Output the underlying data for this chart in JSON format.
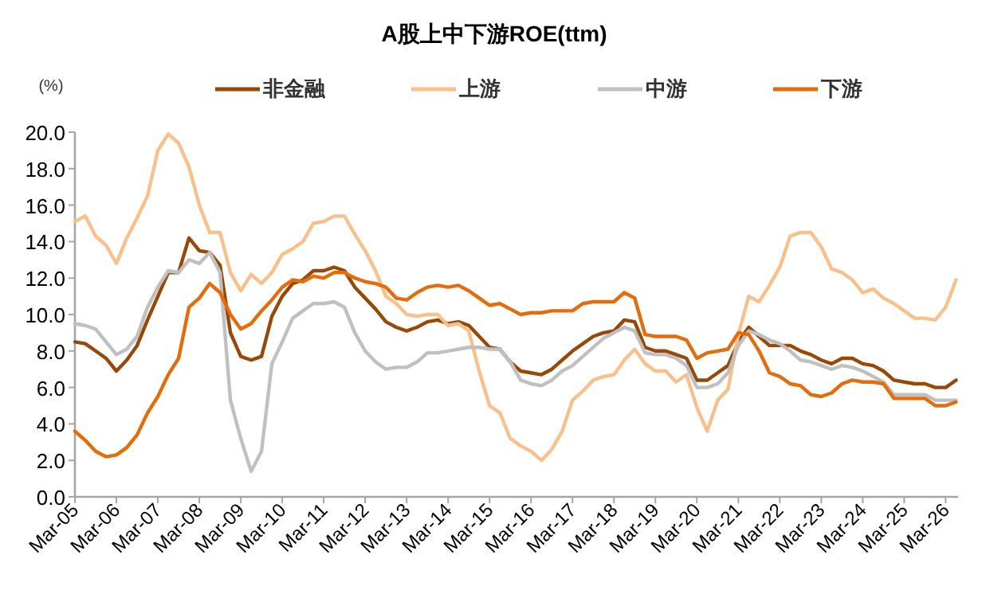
{
  "chart_data": {
    "type": "line",
    "title": "A股上中下游ROE(ttm)",
    "ylabel": "(%)",
    "categories": [
      "Mar-05",
      null,
      null,
      null,
      "Mar-06",
      null,
      null,
      null,
      "Mar-07",
      null,
      null,
      null,
      "Mar-08",
      null,
      null,
      null,
      "Mar-09",
      null,
      null,
      null,
      "Mar-10",
      null,
      null,
      null,
      "Mar-11",
      null,
      null,
      null,
      "Mar-12",
      null,
      null,
      null,
      "Mar-13",
      null,
      null,
      null,
      "Mar-14",
      null,
      null,
      null,
      "Mar-15",
      null,
      null,
      null,
      "Mar-16",
      null,
      null,
      null,
      "Mar-17",
      null,
      null,
      null,
      "Mar-18",
      null,
      null,
      null,
      "Mar-19",
      null,
      null,
      null,
      "Mar-20",
      null,
      null,
      null,
      "Mar-21",
      null,
      null,
      null,
      "Mar-22",
      null,
      null,
      null,
      "Mar-23",
      null,
      null,
      null,
      "Mar-24",
      null,
      null,
      null,
      "Mar-25",
      null,
      null,
      null,
      "Mar-26",
      null
    ],
    "series": [
      {
        "name": "非金融",
        "color": "#984807",
        "values": [
          8.5,
          8.4,
          8.0,
          7.6,
          6.9,
          7.5,
          8.3,
          9.7,
          11.0,
          12.3,
          12.3,
          14.2,
          13.5,
          13.4,
          12.7,
          9.0,
          7.7,
          7.5,
          7.7,
          9.9,
          11.0,
          11.7,
          11.9,
          12.4,
          12.4,
          12.6,
          12.4,
          11.5,
          10.9,
          10.3,
          9.6,
          9.3,
          9.1,
          9.3,
          9.6,
          9.7,
          9.5,
          9.6,
          9.4,
          8.8,
          8.2,
          8.1,
          7.4,
          6.9,
          6.8,
          6.7,
          7.0,
          7.5,
          8.0,
          8.4,
          8.8,
          9.0,
          9.1,
          9.7,
          9.6,
          8.2,
          8.0,
          8.0,
          7.8,
          7.6,
          6.4,
          6.4,
          6.8,
          7.2,
          8.5,
          9.3,
          8.8,
          8.3,
          8.3,
          8.3,
          8.0,
          7.8,
          7.5,
          7.3,
          7.6,
          7.6,
          7.3,
          7.2,
          6.9,
          6.4,
          6.3,
          6.2,
          6.2,
          6.0,
          6.0,
          6.4
        ]
      },
      {
        "name": "上游",
        "color": "#f9c08c",
        "values": [
          15.1,
          15.4,
          14.3,
          13.8,
          12.8,
          14.2,
          15.3,
          16.5,
          19.0,
          19.9,
          19.4,
          18.1,
          16.0,
          14.5,
          14.5,
          12.3,
          11.3,
          12.2,
          11.7,
          12.3,
          13.3,
          13.6,
          14.0,
          15.0,
          15.1,
          15.4,
          15.4,
          14.4,
          13.5,
          12.4,
          11.0,
          10.6,
          10.0,
          9.9,
          10.0,
          10.0,
          9.4,
          9.5,
          9.1,
          6.9,
          5.0,
          4.6,
          3.2,
          2.8,
          2.5,
          2.0,
          2.6,
          3.6,
          5.3,
          5.8,
          6.4,
          6.6,
          6.7,
          7.5,
          8.1,
          7.3,
          6.9,
          6.9,
          6.3,
          6.7,
          4.9,
          3.6,
          5.3,
          5.9,
          8.9,
          11.0,
          10.7,
          11.6,
          12.6,
          14.3,
          14.5,
          14.5,
          13.7,
          12.5,
          12.3,
          11.9,
          11.2,
          11.4,
          10.9,
          10.6,
          10.2,
          9.8,
          9.8,
          9.7,
          10.4,
          11.9
        ]
      },
      {
        "name": "中游",
        "color": "#c0c0c0",
        "values": [
          9.5,
          9.4,
          9.2,
          8.5,
          7.8,
          8.1,
          8.8,
          10.4,
          11.5,
          12.4,
          12.3,
          13.0,
          12.8,
          13.4,
          12.3,
          5.3,
          3.2,
          1.4,
          2.5,
          7.3,
          8.5,
          9.8,
          10.2,
          10.6,
          10.6,
          10.7,
          10.4,
          9.0,
          8.0,
          7.4,
          7.0,
          7.1,
          7.1,
          7.4,
          7.9,
          7.9,
          8.0,
          8.1,
          8.2,
          8.2,
          8.1,
          8.1,
          7.4,
          6.4,
          6.2,
          6.1,
          6.4,
          6.9,
          7.2,
          7.7,
          8.2,
          8.7,
          9.0,
          9.3,
          9.1,
          7.9,
          7.8,
          7.8,
          7.6,
          7.2,
          6.0,
          6.0,
          6.2,
          6.8,
          8.3,
          9.1,
          8.9,
          8.6,
          8.4,
          8.0,
          7.5,
          7.4,
          7.2,
          7.0,
          7.2,
          7.1,
          6.9,
          6.6,
          6.3,
          5.6,
          5.6,
          5.6,
          5.6,
          5.3,
          5.3,
          5.3
        ]
      },
      {
        "name": "下游",
        "color": "#e46c0a",
        "values": [
          3.6,
          3.1,
          2.5,
          2.2,
          2.3,
          2.7,
          3.4,
          4.6,
          5.5,
          6.7,
          7.6,
          10.4,
          10.9,
          11.7,
          11.2,
          10.0,
          9.2,
          9.5,
          10.2,
          10.8,
          11.5,
          11.9,
          11.8,
          12.1,
          12.0,
          12.3,
          12.3,
          12.0,
          11.8,
          11.7,
          11.5,
          10.9,
          10.8,
          11.2,
          11.5,
          11.6,
          11.5,
          11.6,
          11.3,
          10.9,
          10.5,
          10.6,
          10.3,
          10.0,
          10.1,
          10.1,
          10.2,
          10.2,
          10.2,
          10.6,
          10.7,
          10.7,
          10.7,
          11.2,
          10.9,
          8.9,
          8.8,
          8.8,
          8.8,
          8.6,
          7.6,
          7.9,
          8.0,
          8.1,
          9.0,
          8.9,
          8.0,
          6.8,
          6.6,
          6.2,
          6.1,
          5.6,
          5.5,
          5.7,
          6.2,
          6.4,
          6.3,
          6.3,
          6.2,
          5.4,
          5.4,
          5.4,
          5.4,
          5.0,
          5.0,
          5.2
        ]
      }
    ],
    "ylim": [
      0,
      20
    ],
    "yticks": [
      {
        "value": 0,
        "label": "0.0"
      },
      {
        "value": 2,
        "label": "2.0"
      },
      {
        "value": 4,
        "label": "4.0"
      },
      {
        "value": 6,
        "label": "6.0"
      },
      {
        "value": 8,
        "label": "8.0"
      },
      {
        "value": 10,
        "label": "10.0"
      },
      {
        "value": 12,
        "label": "12.0"
      },
      {
        "value": 14,
        "label": "14.0"
      },
      {
        "value": 16,
        "label": "16.0"
      },
      {
        "value": 18,
        "label": "18.0"
      },
      {
        "value": 20,
        "label": "20.0"
      }
    ],
    "grid": false,
    "legend": "top",
    "marker": "none",
    "line_style": "solid"
  }
}
